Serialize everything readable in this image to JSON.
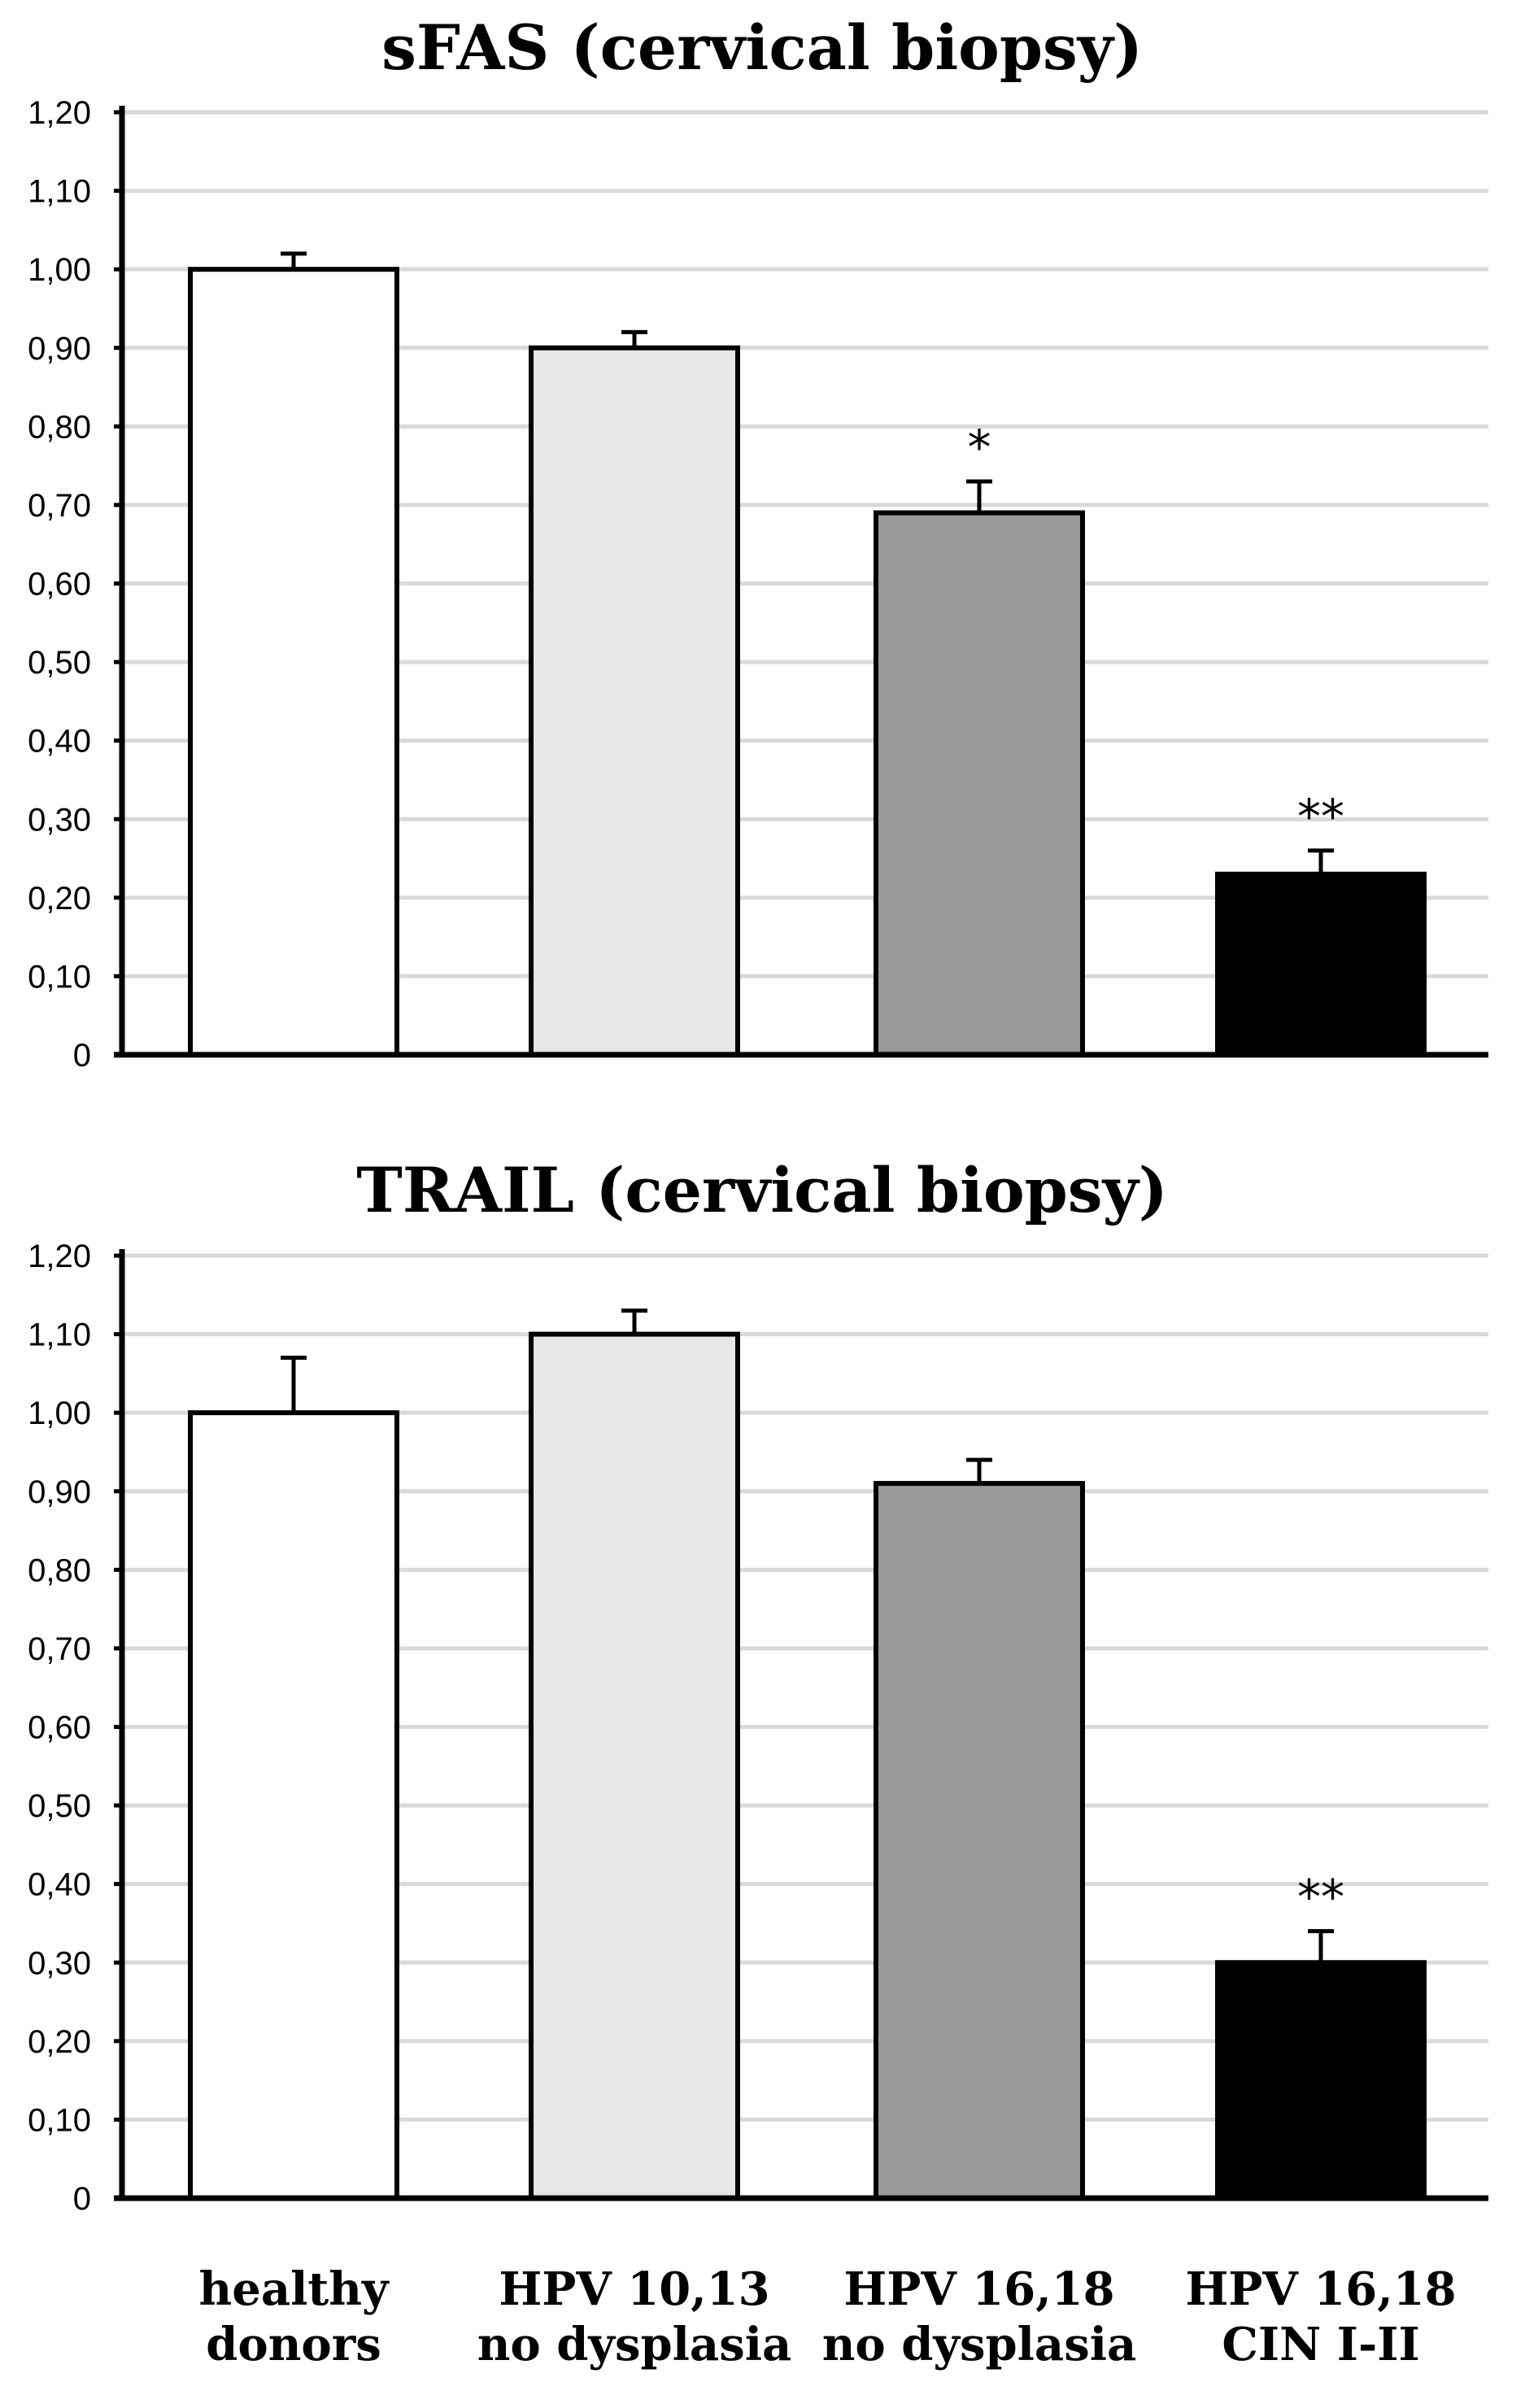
{
  "chart_data": [
    {
      "type": "bar",
      "title": "sFAS (cervical biopsy)",
      "categories": [
        "healthy donors",
        "HPV 10,13 no dysplasia",
        "HPV 16,18 no dysplasia",
        "HPV 16,18 CIN I-II"
      ],
      "values": [
        1.0,
        0.9,
        0.69,
        0.23
      ],
      "errors": [
        0.02,
        0.02,
        0.04,
        0.03
      ],
      "significance": [
        "",
        "",
        "*",
        "**"
      ],
      "colors": [
        "#ffffff",
        "#e6e6e6",
        "#999999",
        "#000000"
      ],
      "yticks": [
        "0",
        "0,10",
        "0,20",
        "0,30",
        "0,40",
        "0,50",
        "0,60",
        "0,70",
        "0,80",
        "0,90",
        "1,00",
        "1,10",
        "1,20"
      ],
      "ylim": [
        0,
        1.2
      ],
      "xlabel": "",
      "ylabel": "",
      "grid": true
    },
    {
      "type": "bar",
      "title": "TRAIL (cervical biopsy)",
      "categories": [
        "healthy donors",
        "HPV 10,13 no dysplasia",
        "HPV 16,18 no dysplasia",
        "HPV 16,18 CIN I-II"
      ],
      "values": [
        1.0,
        1.1,
        0.91,
        0.3
      ],
      "errors": [
        0.07,
        0.03,
        0.03,
        0.04
      ],
      "significance": [
        "",
        "",
        "",
        "**"
      ],
      "colors": [
        "#ffffff",
        "#e6e6e6",
        "#999999",
        "#000000"
      ],
      "yticks": [
        "0",
        "0,10",
        "0,20",
        "0,30",
        "0,40",
        "0,50",
        "0,60",
        "0,70",
        "0,80",
        "0,90",
        "1,00",
        "1,10",
        "1,20"
      ],
      "ylim": [
        0,
        1.2
      ],
      "xlabel": "",
      "ylabel": "",
      "grid": true
    }
  ],
  "category_labels": [
    [
      "healthy",
      "donors"
    ],
    [
      "HPV 10,13",
      "no dysplasia"
    ],
    [
      "HPV 16,18",
      "no dysplasia"
    ],
    [
      "HPV 16,18",
      "CIN I-II"
    ]
  ]
}
